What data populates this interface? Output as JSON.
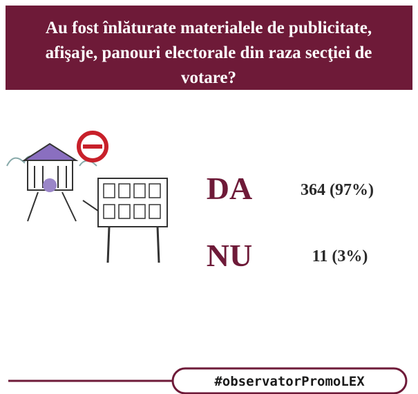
{
  "header": {
    "title_lines": [
      "Au fost înlăturate materialele de publicitate,",
      "afişaje, panouri electorale din raza secţiei de",
      "votare?"
    ]
  },
  "answers": [
    {
      "label": "DA",
      "result": "364 (97%)"
    },
    {
      "label": "NU",
      "result": "11 (3%)"
    }
  ],
  "footer": {
    "hashtag": "#observatorPromoLEX"
  }
}
